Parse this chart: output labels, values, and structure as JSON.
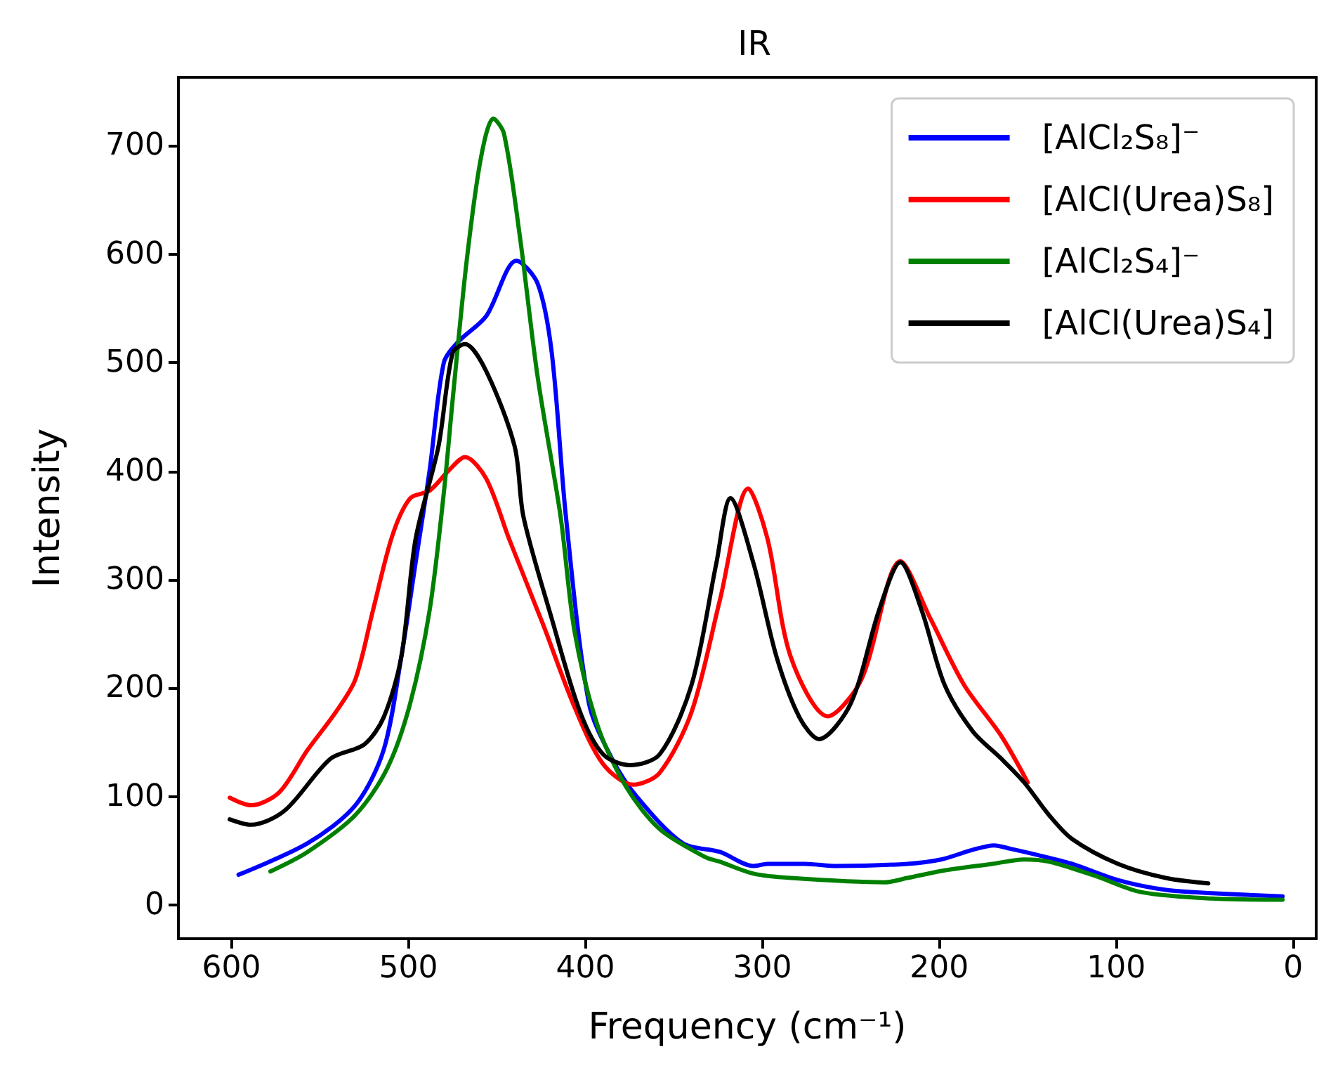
{
  "chart_data": {
    "type": "line",
    "title": "IR",
    "xlabel": "Frequency (cm⁻¹)",
    "ylabel": "Intensity",
    "xlim": [
      630,
      -13
    ],
    "xticks": [
      600,
      500,
      400,
      300,
      200,
      100,
      0
    ],
    "ylim": [
      -31,
      763
    ],
    "yticks": [
      0,
      100,
      200,
      300,
      400,
      500,
      600,
      700
    ],
    "grid": false,
    "legend": "top right",
    "marker": "none",
    "line_style": "solid",
    "series": [
      {
        "name": "[AlCl₂S₈]⁻",
        "color": "#0000ff",
        "x": [
          596,
          557,
          530,
          514,
          504,
          496,
          488,
          480,
          472,
          456,
          439,
          427,
          419,
          411,
          398,
          385,
          371,
          345,
          324,
          305,
          297,
          276,
          258,
          218,
          199,
          181,
          169,
          160,
          144,
          125,
          99,
          72,
          46,
          6
        ],
        "values": [
          28,
          57,
          92,
          143,
          229,
          315,
          401,
          500,
          519,
          543,
          594,
          573,
          509,
          358,
          186,
          135,
          100,
          57,
          49,
          36,
          38,
          38,
          36,
          38,
          42,
          51,
          55,
          52,
          46,
          38,
          23,
          14,
          11,
          8
        ]
      },
      {
        "name": "[AlCl(Urea)S₈]",
        "color": "#ff0000",
        "x": [
          601,
          589,
          573,
          557,
          541,
          530,
          520,
          509,
          499,
          488,
          477,
          468,
          456,
          443,
          424,
          406,
          390,
          373,
          358,
          340,
          324,
          308,
          297,
          284,
          263,
          244,
          222,
          205,
          186,
          165,
          150
        ],
        "values": [
          99,
          92,
          104,
          143,
          178,
          208,
          272,
          341,
          375,
          382,
          401,
          413,
          393,
          337,
          259,
          182,
          130,
          111,
          122,
          178,
          281,
          384,
          337,
          229,
          174,
          208,
          317,
          264,
          203,
          156,
          113
        ]
      },
      {
        "name": "[AlCl₂S₄]⁻",
        "color": "#008000",
        "x": [
          578,
          557,
          530,
          512,
          499,
          488,
          480,
          475,
          467,
          459,
          452,
          446,
          437,
          427,
          414,
          406,
          393,
          377,
          358,
          332,
          324,
          305,
          284,
          231,
          218,
          197,
          170,
          152,
          138,
          112,
          86,
          46,
          6
        ],
        "values": [
          31,
          49,
          83,
          126,
          186,
          272,
          380,
          466,
          595,
          689,
          725,
          711,
          616,
          487,
          358,
          251,
          165,
          109,
          70,
          44,
          40,
          29,
          25,
          21,
          25,
          32,
          38,
          42,
          40,
          27,
          12,
          6,
          5
        ]
      },
      {
        "name": "[AlCl(Urea)S₄]",
        "color": "#000000",
        "x": [
          601,
          589,
          570,
          544,
          525,
          514,
          504,
          496,
          483,
          475,
          468,
          456,
          440,
          435,
          419,
          403,
          390,
          375,
          358,
          340,
          326,
          318,
          305,
          292,
          279,
          268,
          250,
          234,
          222,
          210,
          197,
          181,
          165,
          152,
          138,
          125,
          99,
          72,
          48
        ],
        "values": [
          79,
          74,
          87,
          135,
          148,
          173,
          229,
          337,
          423,
          509,
          517,
          492,
          423,
          358,
          264,
          178,
          139,
          129,
          139,
          203,
          315,
          375,
          315,
          229,
          173,
          153,
          186,
          272,
          316,
          272,
          203,
          160,
          135,
          113,
          83,
          61,
          38,
          25,
          20
        ]
      }
    ]
  }
}
